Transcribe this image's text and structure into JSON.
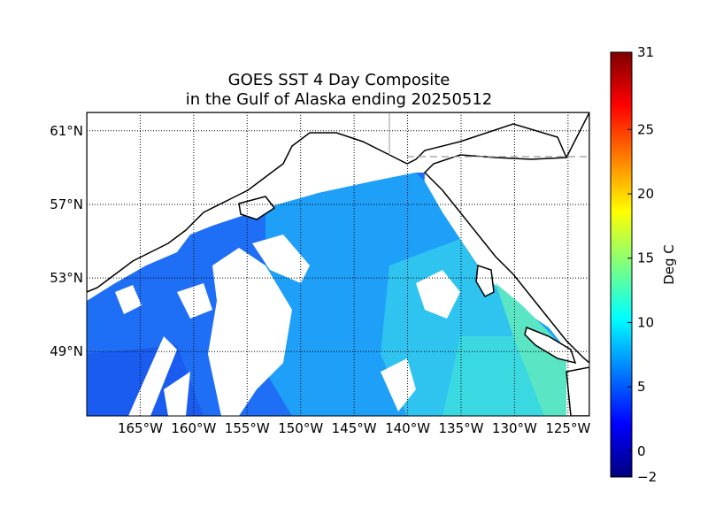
{
  "title": {
    "line1": "GOES SST 4 Day Composite",
    "line2": "in the Gulf of Alaska ending 20250512"
  },
  "map": {
    "projection": "equirectangular",
    "lon_range": [
      -170,
      -123
    ],
    "lat_range": [
      45.5,
      62
    ],
    "parallels": [
      {
        "lat": 61,
        "label": "61°N"
      },
      {
        "lat": 57,
        "label": "57°N"
      },
      {
        "lat": 53,
        "label": "53°N"
      },
      {
        "lat": 49,
        "label": "49°N"
      }
    ],
    "meridians": [
      {
        "lon": -165,
        "label": "165°W"
      },
      {
        "lon": -160,
        "label": "160°W"
      },
      {
        "lon": -155,
        "label": "155°W"
      },
      {
        "lon": -150,
        "label": "150°W"
      },
      {
        "lon": -145,
        "label": "145°W"
      },
      {
        "lon": -140,
        "label": "140°W"
      },
      {
        "lon": -135,
        "label": "135°W"
      },
      {
        "lon": -130,
        "label": "130°W"
      },
      {
        "lon": -125,
        "label": "125°W"
      }
    ]
  },
  "colorbar": {
    "label": "Deg C",
    "min": -2,
    "max": 31,
    "ticks": [
      {
        "value": -2,
        "label": "−2"
      },
      {
        "value": 0,
        "label": "0"
      },
      {
        "value": 5,
        "label": "5"
      },
      {
        "value": 10,
        "label": "10"
      },
      {
        "value": 15,
        "label": "15"
      },
      {
        "value": 20,
        "label": "20"
      },
      {
        "value": 25,
        "label": "25"
      },
      {
        "value": 31,
        "label": "31"
      }
    ],
    "colormap": [
      "#00007f",
      "#0000ff",
      "#007fff",
      "#00ffff",
      "#7fff7f",
      "#ffff00",
      "#ff7f00",
      "#ff0000",
      "#7f0000"
    ]
  }
}
